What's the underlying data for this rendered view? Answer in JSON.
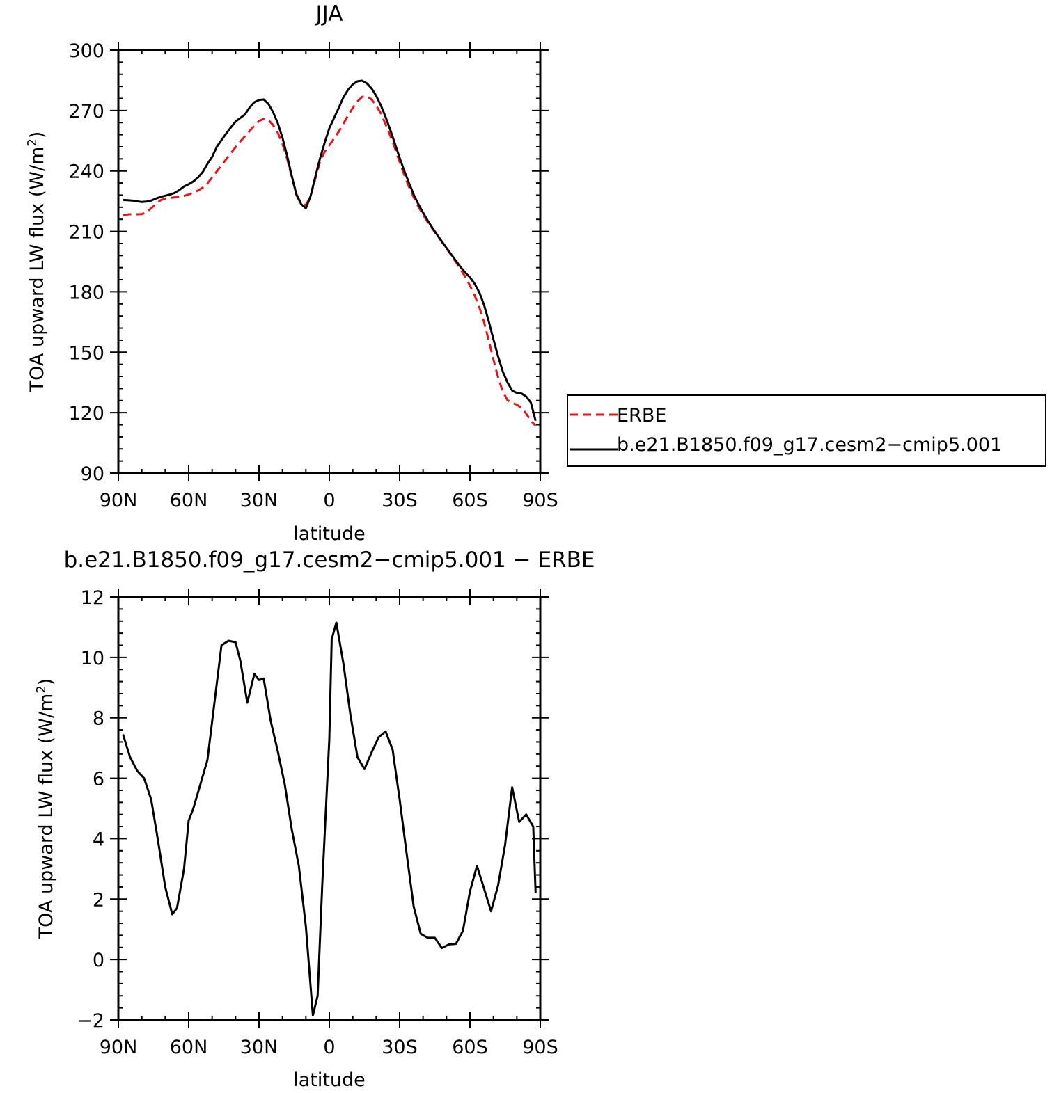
{
  "chart_data": [
    {
      "type": "line",
      "title": "JJA",
      "xlabel": "latitude",
      "ylabel": "TOA upward LW flux (W/m²)",
      "ylabel_parts": {
        "before": "TOA upward LW flux (W/m",
        "sup": "2",
        "after": ")"
      },
      "xlim": [
        90,
        -90
      ],
      "ylim": [
        90,
        300
      ],
      "x_ticks": [
        90,
        60,
        30,
        0,
        -30,
        -60,
        -90
      ],
      "x_tick_labels": [
        "90N",
        "60N",
        "30N",
        "0",
        "30S",
        "60S",
        "90S"
      ],
      "y_ticks": [
        90,
        120,
        150,
        180,
        210,
        240,
        270,
        300
      ],
      "y_tick_labels": [
        "90",
        "120",
        "150",
        "180",
        "210",
        "240",
        "270",
        "300"
      ],
      "legend": {
        "placement": "right",
        "entries": [
          "ERBE",
          "b.e21.B1850.f09_g17.cesm2−cmip5.001"
        ]
      },
      "series": [
        {
          "name": "ERBE",
          "color": "#e8141b",
          "dash": "dashed",
          "x": [
            88,
            86,
            84,
            82,
            80,
            78,
            76,
            74,
            72,
            70,
            68,
            66,
            64,
            62,
            60,
            58,
            56,
            54,
            52,
            50,
            48,
            46,
            44,
            42,
            40,
            38,
            36,
            34,
            32,
            30,
            28,
            26,
            24,
            22,
            20,
            18,
            16,
            14,
            12,
            10,
            8,
            6,
            4,
            2,
            0,
            -2,
            -4,
            -6,
            -8,
            -10,
            -12,
            -14,
            -16,
            -18,
            -20,
            -22,
            -24,
            -26,
            -28,
            -30,
            -32,
            -34,
            -36,
            -38,
            -40,
            -42,
            -44,
            -46,
            -48,
            -50,
            -52,
            -54,
            -56,
            -58,
            -60,
            -62,
            -64,
            -66,
            -68,
            -70,
            -72,
            -74,
            -76,
            -78,
            -80,
            -82,
            -84,
            -86,
            -88
          ],
          "values": [
            218,
            218.4,
            218.6,
            218.5,
            218.6,
            219.5,
            221.5,
            223.5,
            225.5,
            226.2,
            226.6,
            226.9,
            227.2,
            227.6,
            228.3,
            229.2,
            230.3,
            231.7,
            233.8,
            236.8,
            239.8,
            242.8,
            245.8,
            248.8,
            251.8,
            254.6,
            257.2,
            259.8,
            262.5,
            264.8,
            265.8,
            265.3,
            262.8,
            259,
            253.5,
            246,
            237,
            228.5,
            223.8,
            223,
            227.5,
            236,
            244.5,
            249.5,
            252.8,
            256,
            259.5,
            263.5,
            267.5,
            271.3,
            274.5,
            276.8,
            277.1,
            275.5,
            272.5,
            268.5,
            263.3,
            257.5,
            251.3,
            244.5,
            238,
            232,
            227,
            222.3,
            218.3,
            214.6,
            211.3,
            208,
            204.8,
            201.5,
            198.2,
            194.8,
            191.2,
            187.4,
            183.1,
            178.2,
            172.3,
            165,
            156,
            146.4,
            137.6,
            130.5,
            126.2,
            124.8,
            124,
            122.3,
            119.5,
            116,
            113.5
          ]
        },
        {
          "name": "b.e21.B1850.f09_g17.cesm2−cmip5.001",
          "color": "#000000",
          "dash": "solid",
          "x": [
            88,
            86,
            84,
            82,
            80,
            78,
            76,
            74,
            72,
            70,
            68,
            66,
            64,
            62,
            60,
            58,
            56,
            54,
            52,
            50,
            48,
            46,
            44,
            42,
            40,
            38,
            36,
            34,
            32,
            30,
            28,
            26,
            24,
            22,
            20,
            18,
            16,
            14,
            12,
            10,
            8,
            6,
            4,
            2,
            0,
            -2,
            -4,
            -6,
            -8,
            -10,
            -12,
            -14,
            -16,
            -18,
            -20,
            -22,
            -24,
            -26,
            -28,
            -30,
            -32,
            -34,
            -36,
            -38,
            -40,
            -42,
            -44,
            -46,
            -48,
            -50,
            -52,
            -54,
            -56,
            -58,
            -60,
            -62,
            -64,
            -66,
            -68,
            -70,
            -72,
            -74,
            -76,
            -78,
            -80,
            -82,
            -84,
            -86,
            -88
          ],
          "values": [
            225.6,
            225.5,
            225.3,
            224.9,
            224.6,
            224.8,
            225.3,
            226.3,
            227.1,
            227.7,
            228.3,
            229.1,
            230.5,
            232.3,
            233.4,
            234.8,
            236.8,
            239.5,
            243.5,
            247,
            252,
            255.3,
            258.6,
            261.6,
            264.5,
            266.3,
            268,
            271.5,
            274.1,
            275.2,
            275.5,
            273.3,
            269.2,
            263.8,
            256.5,
            247.5,
            237.5,
            228,
            223.5,
            221.5,
            227.5,
            237,
            246,
            254,
            261.2,
            266.2,
            271.3,
            276.5,
            280.3,
            283,
            284.5,
            284.8,
            283.5,
            281,
            277.3,
            272.5,
            266.8,
            260.5,
            253.5,
            246.5,
            240,
            234,
            228.3,
            223.5,
            219.3,
            215.3,
            211.8,
            208.3,
            205,
            201.8,
            198.6,
            195.4,
            192.3,
            189.5,
            187.2,
            184,
            179.7,
            173.5,
            165.5,
            156.5,
            148,
            140.5,
            135,
            131,
            129.8,
            129.5,
            128,
            125,
            116
          ]
        }
      ]
    },
    {
      "type": "line",
      "title": "b.e21.B1850.f09_g17.cesm2−cmip5.001  −  ERBE",
      "xlabel": "latitude",
      "ylabel": "TOA upward LW flux (W/m²)",
      "ylabel_parts": {
        "before": "TOA upward LW flux (W/m",
        "sup": "2",
        "after": ")"
      },
      "xlim": [
        90,
        -90
      ],
      "ylim": [
        -2,
        12
      ],
      "x_ticks": [
        90,
        60,
        30,
        0,
        -30,
        -60,
        -90
      ],
      "x_tick_labels": [
        "90N",
        "60N",
        "30N",
        "0",
        "30S",
        "60S",
        "90S"
      ],
      "y_ticks": [
        -2,
        0,
        2,
        4,
        6,
        8,
        10,
        12
      ],
      "y_tick_labels": [
        "−2",
        "0",
        "2",
        "4",
        "6",
        "8",
        "10",
        "12"
      ],
      "series": [
        {
          "color": "#000000",
          "dash": "solid",
          "x": [
            88,
            85,
            82,
            79,
            76,
            73,
            70,
            67,
            65,
            62,
            60,
            58,
            55,
            52,
            49,
            46,
            43,
            40,
            38,
            35,
            32,
            30,
            28,
            25,
            22,
            19,
            16,
            13,
            10,
            7,
            5,
            3,
            0,
            -1,
            -3,
            -6,
            -9,
            -12,
            -15,
            -18,
            -21,
            -24,
            -27,
            -30,
            -33,
            -36,
            -39,
            -42,
            -45,
            -48,
            -51,
            -54,
            -57,
            -60,
            -63,
            -66,
            -69,
            -72,
            -75,
            -78,
            -81,
            -84,
            -87,
            -88
          ],
          "values": [
            7.45,
            6.7,
            6.25,
            6.0,
            5.3,
            3.9,
            2.4,
            1.5,
            1.7,
            3.0,
            4.6,
            5.0,
            5.8,
            6.6,
            8.5,
            10.4,
            10.55,
            10.5,
            9.9,
            8.5,
            9.45,
            9.25,
            9.3,
            7.9,
            6.9,
            5.8,
            4.3,
            3.1,
            1.1,
            -1.85,
            -1.2,
            2.5,
            7.3,
            10.6,
            11.15,
            9.8,
            8.1,
            6.7,
            6.3,
            6.85,
            7.35,
            7.55,
            6.95,
            5.3,
            3.5,
            1.75,
            0.85,
            0.72,
            0.72,
            0.38,
            0.5,
            0.52,
            0.95,
            2.25,
            3.1,
            2.35,
            1.6,
            2.45,
            3.8,
            5.7,
            4.55,
            4.8,
            4.4,
            2.2
          ]
        }
      ]
    }
  ]
}
